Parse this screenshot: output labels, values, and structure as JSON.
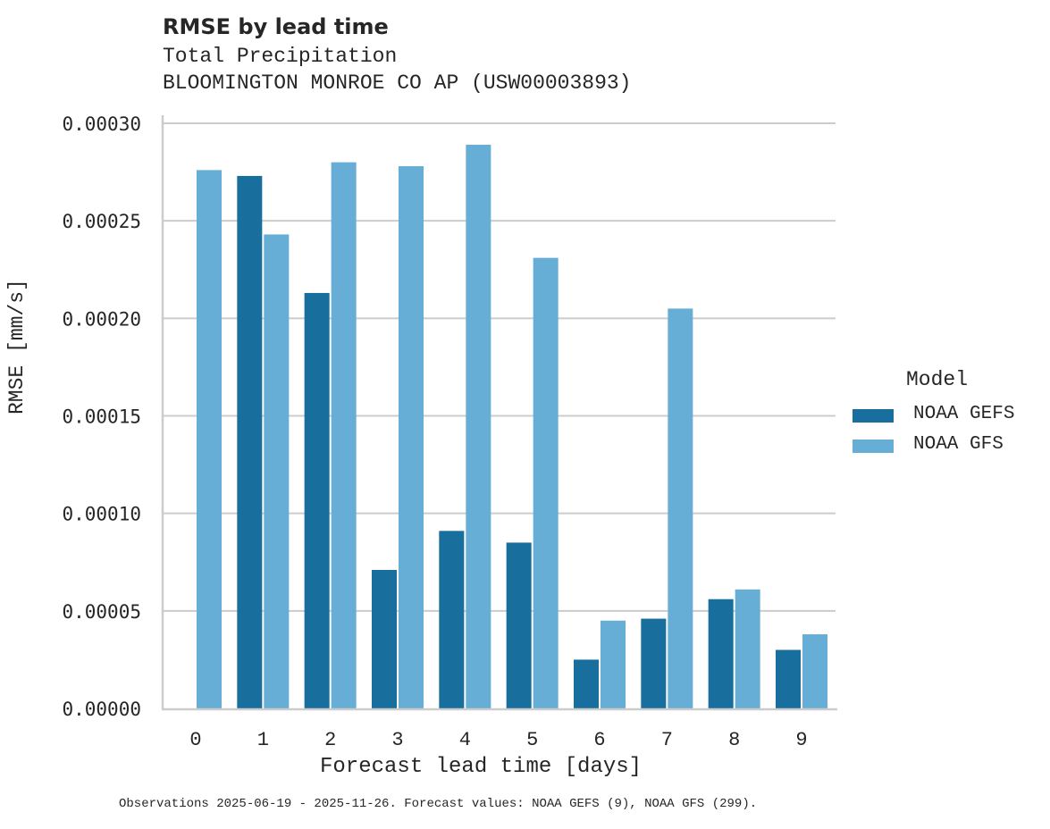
{
  "header": {
    "title": "RMSE by lead time",
    "subtitle_1": "Total Precipitation",
    "subtitle_2": "BLOOMINGTON MONROE CO AP (USW00003893)"
  },
  "axes": {
    "xlabel": "Forecast lead time [days]",
    "ylabel": "RMSE [mm/s]"
  },
  "legend": {
    "title": "Model",
    "items": [
      {
        "label": "NOAA GEFS",
        "color": "#186e9c"
      },
      {
        "label": "NOAA GFS",
        "color": "#67aed6"
      }
    ]
  },
  "footnote": "Observations 2025-06-19 - 2025-11-26. Forecast values: NOAA GEFS (9), NOAA GFS (299).",
  "colors": {
    "gefs": "#186e9c",
    "gfs": "#67aed6",
    "grid": "#cccccc",
    "text": "#262626"
  },
  "chart_data": {
    "type": "bar",
    "title": "RMSE by lead time",
    "subtitle": "Total Precipitation — BLOOMINGTON MONROE CO AP (USW00003893)",
    "xlabel": "Forecast lead time [days]",
    "ylabel": "RMSE [mm/s]",
    "categories": [
      "0",
      "1",
      "2",
      "3",
      "4",
      "5",
      "6",
      "7",
      "8",
      "9"
    ],
    "series": [
      {
        "name": "NOAA GEFS",
        "color": "#186e9c",
        "values": [
          null,
          0.000273,
          0.000213,
          7.1e-05,
          9.1e-05,
          8.5e-05,
          2.5e-05,
          4.6e-05,
          5.6e-05,
          3e-05
        ]
      },
      {
        "name": "NOAA GFS",
        "color": "#67aed6",
        "values": [
          0.000276,
          0.000243,
          0.00028,
          0.000278,
          0.000289,
          0.000231,
          4.5e-05,
          0.000205,
          6.1e-05,
          3.8e-05
        ]
      }
    ],
    "ylim": [
      0,
      0.0003
    ],
    "yticks": [
      "0.00000",
      "0.00005",
      "0.00010",
      "0.00015",
      "0.00020",
      "0.00025",
      "0.00030"
    ],
    "grid": "horizontal",
    "legend_position": "right",
    "legend_title": "Model"
  }
}
